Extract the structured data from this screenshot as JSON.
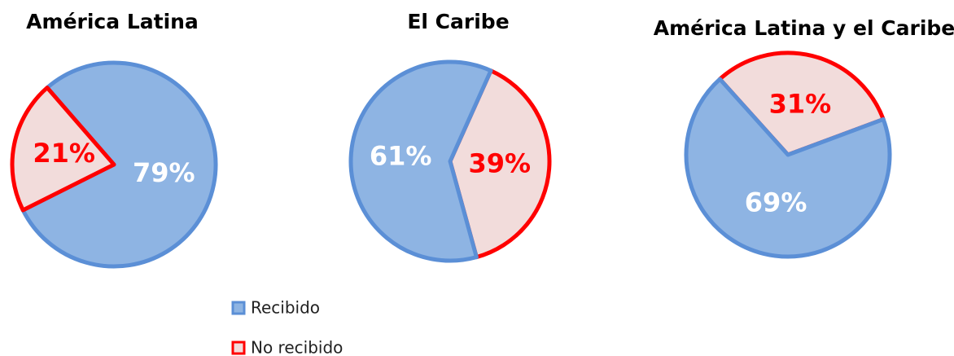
{
  "chart_data": [
    {
      "type": "pie",
      "title": "América Latina",
      "values": [
        79,
        21
      ],
      "value_labels": [
        "79%",
        "21%"
      ]
    },
    {
      "type": "pie",
      "title": "El Caribe",
      "values": [
        61,
        39
      ],
      "value_labels": [
        "61%",
        "39%"
      ]
    },
    {
      "type": "pie",
      "title": "América Latina y el Caribe",
      "values": [
        69,
        31
      ],
      "value_labels": [
        "69%",
        "31%"
      ]
    }
  ],
  "legend": {
    "items": [
      {
        "name": "Recibido",
        "color": "#8eb4e3",
        "border": "#5b8fd6",
        "label_color": "#ffffff"
      },
      {
        "name": "No recibido",
        "color": "#f2dcdb",
        "border": "#ff0000",
        "label_color": "#ff0000"
      }
    ]
  }
}
